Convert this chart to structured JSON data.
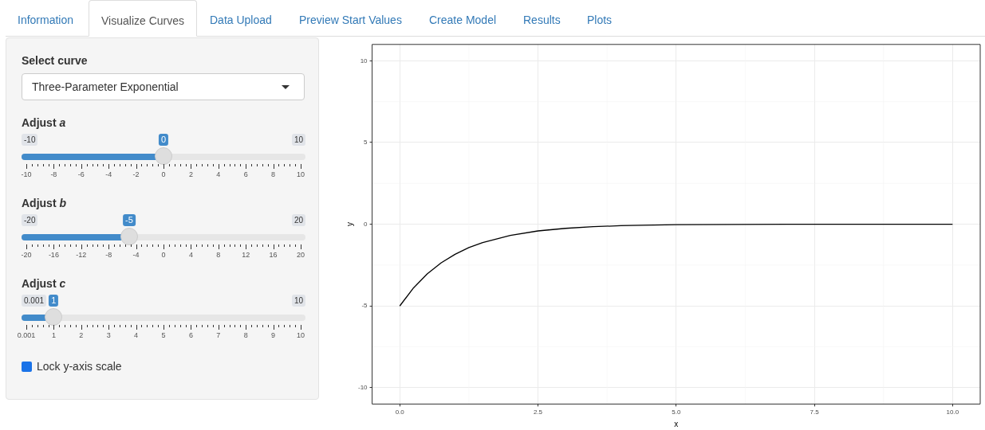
{
  "chart_data": {
    "type": "line",
    "xlabel": "x",
    "ylabel": "y",
    "x": [
      0,
      0.25,
      0.5,
      0.75,
      1,
      1.25,
      1.5,
      2,
      2.5,
      3,
      3.5,
      4,
      5,
      6,
      7,
      8,
      9,
      10
    ],
    "values": [
      -5,
      -3.89,
      -3.03,
      -2.36,
      -1.84,
      -1.43,
      -1.12,
      -0.68,
      -0.41,
      -0.25,
      -0.15,
      -0.09,
      -0.03,
      -0.01,
      0,
      0,
      0,
      0
    ],
    "color": "#000000",
    "xlim": [
      -0.5,
      10.5
    ],
    "ylim": [
      -11,
      11
    ],
    "xticks": [
      {
        "value": 0,
        "label": "0.0"
      },
      {
        "value": 2.5,
        "label": "2.5"
      },
      {
        "value": 5,
        "label": "5.0"
      },
      {
        "value": 7.5,
        "label": "7.5"
      },
      {
        "value": 10,
        "label": "10.0"
      }
    ],
    "yticks": [
      -10,
      -5,
      0,
      5,
      10
    ],
    "grid": true,
    "legend": false,
    "marker": "none",
    "line_style": "solid",
    "annotations": [
      "Information",
      "Visualize Curves",
      "Data Upload",
      "Preview Start Values",
      "Create Model",
      "Results",
      "Plots",
      "Select curve",
      "Three-Parameter Exponential",
      "Adjust a",
      "-10",
      "10",
      "0",
      "-10",
      "-8",
      "-6",
      "-4",
      "-2",
      "0",
      "2",
      "4",
      "6",
      "8",
      "10",
      "Adjust b",
      "-20",
      "20",
      "-5",
      "-20",
      "-16",
      "-12",
      "-8",
      "-4",
      "0",
      "4",
      "8",
      "12",
      "16",
      "20",
      "Adjust c",
      "0.001",
      "10",
      "1",
      "0.001",
      "1",
      "2",
      "3",
      "4",
      "5",
      "6",
      "7",
      "8",
      "9",
      "10",
      "Lock y-axis scale"
    ]
  }
}
